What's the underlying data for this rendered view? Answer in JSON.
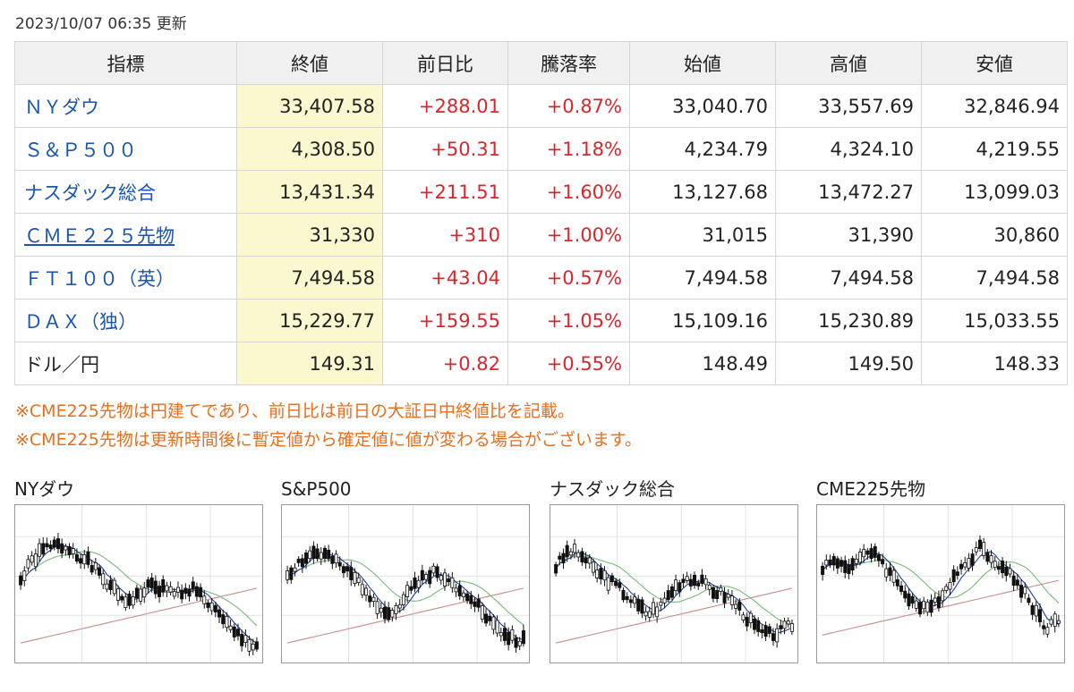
{
  "updated": "2023/10/07 06:35 更新",
  "table": {
    "headers": [
      "指標",
      "終値",
      "前日比",
      "騰落率",
      "始値",
      "高値",
      "安値"
    ],
    "rows": [
      {
        "name": "ＮＹダウ",
        "close": "33,407.58",
        "change": "+288.01",
        "rate": "+0.87%",
        "open": "33,040.70",
        "high": "33,557.69",
        "low": "32,846.94"
      },
      {
        "name": "Ｓ＆Ｐ５００",
        "close": "4,308.50",
        "change": "+50.31",
        "rate": "+1.18%",
        "open": "4,234.79",
        "high": "4,324.10",
        "low": "4,219.55"
      },
      {
        "name": "ナスダック総合",
        "close": "13,431.34",
        "change": "+211.51",
        "rate": "+1.60%",
        "open": "13,127.68",
        "high": "13,472.27",
        "low": "13,099.03"
      },
      {
        "name": "ＣＭＥ２２５先物",
        "close": "31,330",
        "change": "+310",
        "rate": "+1.00%",
        "open": "31,015",
        "high": "31,390",
        "low": "30,860"
      },
      {
        "name": "ＦＴ１００（英）",
        "close": "7,494.58",
        "change": "+43.04",
        "rate": "+0.57%",
        "open": "7,494.58",
        "high": "7,494.58",
        "low": "7,494.58"
      },
      {
        "name": "ＤＡＸ（独）",
        "close": "15,229.77",
        "change": "+159.55",
        "rate": "+1.05%",
        "open": "15,109.16",
        "high": "15,230.89",
        "low": "15,033.55"
      },
      {
        "name": "ドル／円",
        "close": "149.31",
        "change": "+0.82",
        "rate": "+0.55%",
        "open": "148.49",
        "high": "149.50",
        "low": "148.33"
      }
    ]
  },
  "notes": [
    "※CME225先物は円建てであり、前日比は前日の大証日中終値比を記載。",
    "※CME225先物は更新時間後に暫定値から確定値に値が変わる場合がございます。"
  ],
  "charts": [
    {
      "title": "NYダウ"
    },
    {
      "title": "S&P500"
    },
    {
      "title": "ナスダック総合"
    },
    {
      "title": "CME225先物"
    }
  ],
  "colors": {
    "link": "#1a56b0",
    "up": "#d8262c",
    "note": "#e66f1f",
    "close_bg": "#fbf7cf",
    "header_bg": "#f0f0f0",
    "ma_short": "#1f3f9a",
    "ma_mid": "#7ab87a",
    "ma_long": "#c98a8a"
  }
}
